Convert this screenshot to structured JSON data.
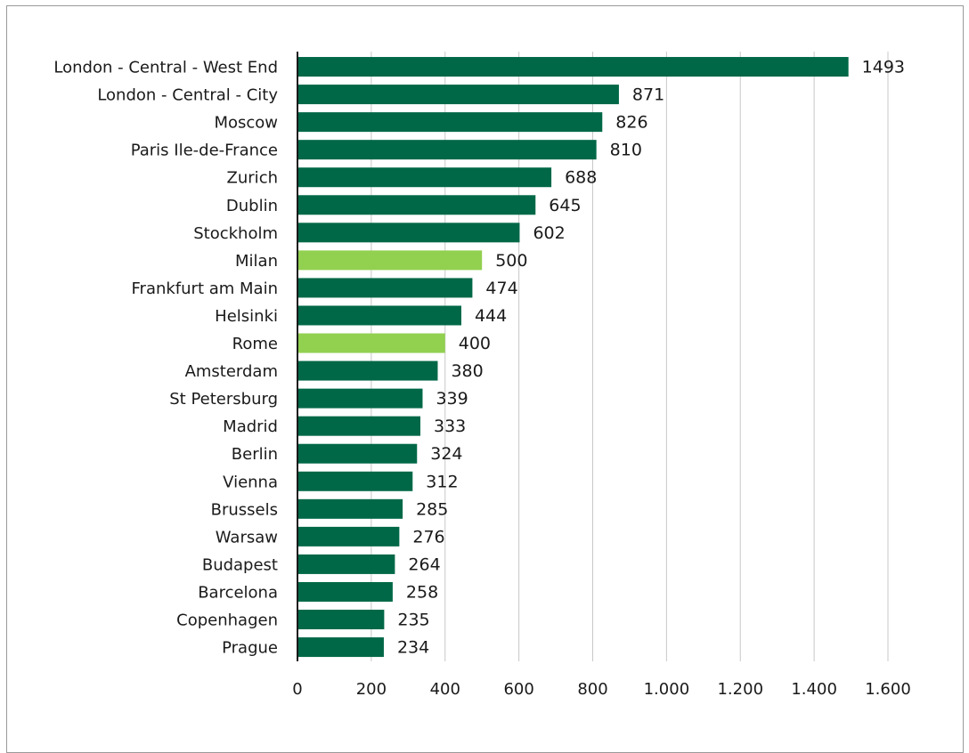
{
  "chart_data": {
    "type": "bar",
    "orientation": "horizontal",
    "categories": [
      "London - Central - West End",
      "London - Central - City",
      "Moscow",
      "Paris Ile-de-France",
      "Zurich",
      "Dublin",
      "Stockholm",
      "Milan",
      "Frankfurt am Main",
      "Helsinki",
      "Rome",
      "Amsterdam",
      "St Petersburg",
      "Madrid",
      "Berlin",
      "Vienna",
      "Brussels",
      "Warsaw",
      "Budapest",
      "Barcelona",
      "Copenhagen",
      "Prague"
    ],
    "values": [
      1493,
      871,
      826,
      810,
      688,
      645,
      602,
      500,
      474,
      444,
      400,
      380,
      339,
      333,
      324,
      312,
      285,
      276,
      264,
      258,
      235,
      234
    ],
    "data_labels": [
      "1493",
      "871",
      "826",
      "810",
      "688",
      "645",
      "602",
      "500",
      "474",
      "444",
      "400",
      "380",
      "339",
      "333",
      "324",
      "312",
      "285",
      "276",
      "264",
      "258",
      "235",
      "234"
    ],
    "highlighted": [
      "Milan",
      "Rome"
    ],
    "xlim": [
      0,
      1600
    ],
    "xticks": [
      0,
      200,
      400,
      600,
      800,
      1000,
      1200,
      1400,
      1600
    ],
    "xtick_labels": [
      "0",
      "200",
      "400",
      "600",
      "800",
      "1.000",
      "1.200",
      "1.400",
      "1.600"
    ],
    "grid": "vertical",
    "legend": "none",
    "colors": {
      "bar": "#006847",
      "highlight": "#92d050",
      "grid": "#c8c8c8",
      "axis": "#1a1a1a"
    }
  }
}
